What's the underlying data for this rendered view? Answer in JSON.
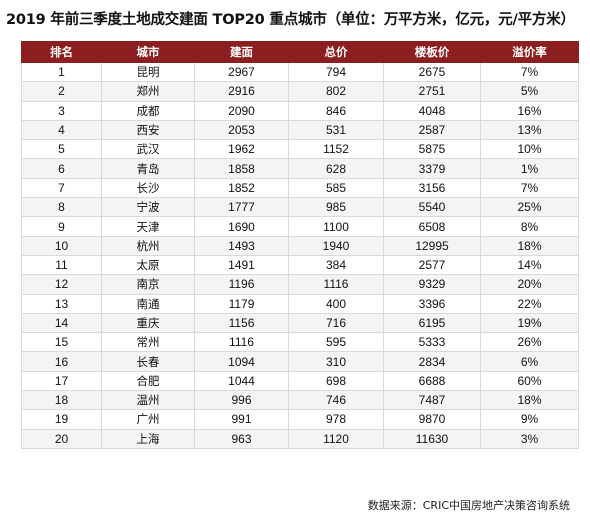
{
  "title": "2019 年前三季度土地成交建面 TOP20 重点城市（单位：万平方米，亿元，元/平方米）",
  "headers": [
    "排名",
    "城市",
    "建面",
    "总价",
    "楼板价",
    "溢价率"
  ],
  "rows": [
    [
      "1",
      "昆明",
      "2967",
      "794",
      "2675",
      "7%"
    ],
    [
      "2",
      "郑州",
      "2916",
      "802",
      "2751",
      "5%"
    ],
    [
      "3",
      "成都",
      "2090",
      "846",
      "4048",
      "16%"
    ],
    [
      "4",
      "西安",
      "2053",
      "531",
      "2587",
      "13%"
    ],
    [
      "5",
      "武汉",
      "1962",
      "1152",
      "5875",
      "10%"
    ],
    [
      "6",
      "青岛",
      "1858",
      "628",
      "3379",
      "1%"
    ],
    [
      "7",
      "长沙",
      "1852",
      "585",
      "3156",
      "7%"
    ],
    [
      "8",
      "宁波",
      "1777",
      "985",
      "5540",
      "25%"
    ],
    [
      "9",
      "天津",
      "1690",
      "1100",
      "6508",
      "8%"
    ],
    [
      "10",
      "杭州",
      "1493",
      "1940",
      "12995",
      "18%"
    ],
    [
      "11",
      "太原",
      "1491",
      "384",
      "2577",
      "14%"
    ],
    [
      "12",
      "南京",
      "1196",
      "1116",
      "9329",
      "20%"
    ],
    [
      "13",
      "南通",
      "1179",
      "400",
      "3396",
      "22%"
    ],
    [
      "14",
      "重庆",
      "1156",
      "716",
      "6195",
      "19%"
    ],
    [
      "15",
      "常州",
      "1116",
      "595",
      "5333",
      "26%"
    ],
    [
      "16",
      "长春",
      "1094",
      "310",
      "2834",
      "6%"
    ],
    [
      "17",
      "合肥",
      "1044",
      "698",
      "6688",
      "60%"
    ],
    [
      "18",
      "温州",
      "996",
      "746",
      "7487",
      "18%"
    ],
    [
      "19",
      "广州",
      "991",
      "978",
      "9870",
      "9%"
    ],
    [
      "20",
      "上海",
      "963",
      "1120",
      "11630",
      "3%"
    ]
  ],
  "source": "数据来源：CRIC中国房地产决策咨询系统",
  "colors": {
    "header_bg": "#8b1f1f",
    "header_text": "#ffffff",
    "stripe": "#f4f4f4"
  }
}
